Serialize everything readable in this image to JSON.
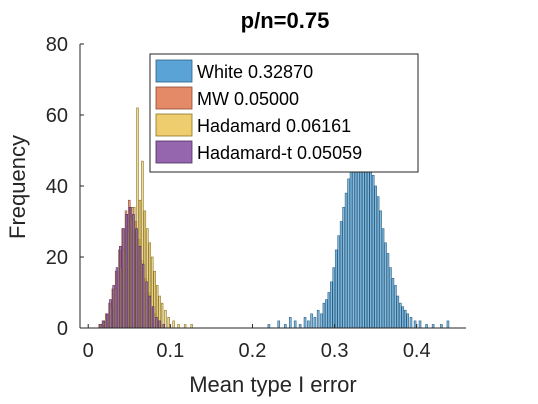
{
  "chart_data": {
    "type": "histogram",
    "title": "p/n=0.75",
    "xlabel": "Mean type I error",
    "ylabel": "Frequency",
    "xlim": [
      -0.01,
      0.46
    ],
    "ylim": [
      0,
      80
    ],
    "xticks": [
      0,
      0.1,
      0.2,
      0.3,
      0.4
    ],
    "xtick_labels": [
      "0",
      "0.1",
      "0.2",
      "0.3",
      "0.4"
    ],
    "yticks": [
      0,
      20,
      40,
      60,
      80
    ],
    "ytick_labels": [
      "0",
      "20",
      "40",
      "60",
      "80"
    ],
    "grid": false,
    "legend_position": "top-center",
    "series": [
      {
        "name": "White 0.32870",
        "color": "#5aa3d6",
        "edge_color": "#2b5f82",
        "bin_width": 0.0024,
        "bins": [
          {
            "x": 0.22,
            "y": 1
          },
          {
            "x": 0.232,
            "y": 2
          },
          {
            "x": 0.24,
            "y": 1
          },
          {
            "x": 0.246,
            "y": 3
          },
          {
            "x": 0.252,
            "y": 2
          },
          {
            "x": 0.258,
            "y": 1
          },
          {
            "x": 0.264,
            "y": 3
          },
          {
            "x": 0.268,
            "y": 2
          },
          {
            "x": 0.272,
            "y": 4
          },
          {
            "x": 0.276,
            "y": 3
          },
          {
            "x": 0.28,
            "y": 5
          },
          {
            "x": 0.284,
            "y": 4
          },
          {
            "x": 0.287,
            "y": 7
          },
          {
            "x": 0.29,
            "y": 8
          },
          {
            "x": 0.293,
            "y": 10
          },
          {
            "x": 0.296,
            "y": 13
          },
          {
            "x": 0.299,
            "y": 17
          },
          {
            "x": 0.302,
            "y": 22
          },
          {
            "x": 0.305,
            "y": 26
          },
          {
            "x": 0.308,
            "y": 30
          },
          {
            "x": 0.311,
            "y": 34
          },
          {
            "x": 0.314,
            "y": 38
          },
          {
            "x": 0.317,
            "y": 42
          },
          {
            "x": 0.32,
            "y": 45
          },
          {
            "x": 0.323,
            "y": 50
          },
          {
            "x": 0.326,
            "y": 48
          },
          {
            "x": 0.329,
            "y": 52
          },
          {
            "x": 0.332,
            "y": 49
          },
          {
            "x": 0.335,
            "y": 55
          },
          {
            "x": 0.338,
            "y": 51
          },
          {
            "x": 0.341,
            "y": 47
          },
          {
            "x": 0.344,
            "y": 45
          },
          {
            "x": 0.347,
            "y": 43
          },
          {
            "x": 0.35,
            "y": 40
          },
          {
            "x": 0.353,
            "y": 37
          },
          {
            "x": 0.356,
            "y": 33
          },
          {
            "x": 0.359,
            "y": 28
          },
          {
            "x": 0.362,
            "y": 24
          },
          {
            "x": 0.365,
            "y": 21
          },
          {
            "x": 0.368,
            "y": 17
          },
          {
            "x": 0.371,
            "y": 14
          },
          {
            "x": 0.374,
            "y": 12
          },
          {
            "x": 0.377,
            "y": 9
          },
          {
            "x": 0.38,
            "y": 7
          },
          {
            "x": 0.383,
            "y": 6
          },
          {
            "x": 0.386,
            "y": 5
          },
          {
            "x": 0.389,
            "y": 4
          },
          {
            "x": 0.393,
            "y": 3
          },
          {
            "x": 0.398,
            "y": 2
          },
          {
            "x": 0.404,
            "y": 2
          },
          {
            "x": 0.412,
            "y": 1
          },
          {
            "x": 0.42,
            "y": 1
          },
          {
            "x": 0.43,
            "y": 1
          },
          {
            "x": 0.438,
            "y": 2
          }
        ]
      },
      {
        "name": "MW 0.05000",
        "color": "#e58a66",
        "edge_color": "#8a4a30",
        "bin_width": 0.0022,
        "bins": [
          {
            "x": 0.014,
            "y": 1
          },
          {
            "x": 0.018,
            "y": 2
          },
          {
            "x": 0.022,
            "y": 4
          },
          {
            "x": 0.026,
            "y": 7
          },
          {
            "x": 0.03,
            "y": 11
          },
          {
            "x": 0.034,
            "y": 16
          },
          {
            "x": 0.038,
            "y": 22
          },
          {
            "x": 0.042,
            "y": 28
          },
          {
            "x": 0.046,
            "y": 33
          },
          {
            "x": 0.05,
            "y": 36
          },
          {
            "x": 0.054,
            "y": 34
          },
          {
            "x": 0.058,
            "y": 30
          },
          {
            "x": 0.062,
            "y": 25
          },
          {
            "x": 0.066,
            "y": 19
          },
          {
            "x": 0.07,
            "y": 14
          },
          {
            "x": 0.074,
            "y": 10
          },
          {
            "x": 0.078,
            "y": 6
          },
          {
            "x": 0.082,
            "y": 4
          },
          {
            "x": 0.086,
            "y": 2
          },
          {
            "x": 0.09,
            "y": 1
          }
        ]
      },
      {
        "name": "Hadamard 0.06161",
        "color": "#eecd6e",
        "edge_color": "#8a7424",
        "bin_width": 0.0022,
        "bins": [
          {
            "x": 0.016,
            "y": 1
          },
          {
            "x": 0.022,
            "y": 3
          },
          {
            "x": 0.028,
            "y": 6
          },
          {
            "x": 0.034,
            "y": 11
          },
          {
            "x": 0.04,
            "y": 17
          },
          {
            "x": 0.044,
            "y": 22
          },
          {
            "x": 0.048,
            "y": 27
          },
          {
            "x": 0.052,
            "y": 31
          },
          {
            "x": 0.056,
            "y": 34
          },
          {
            "x": 0.06,
            "y": 62
          },
          {
            "x": 0.063,
            "y": 36
          },
          {
            "x": 0.066,
            "y": 47
          },
          {
            "x": 0.069,
            "y": 33
          },
          {
            "x": 0.072,
            "y": 28
          },
          {
            "x": 0.075,
            "y": 24
          },
          {
            "x": 0.078,
            "y": 20
          },
          {
            "x": 0.081,
            "y": 16
          },
          {
            "x": 0.084,
            "y": 12
          },
          {
            "x": 0.087,
            "y": 9
          },
          {
            "x": 0.09,
            "y": 7
          },
          {
            "x": 0.094,
            "y": 5
          },
          {
            "x": 0.098,
            "y": 3
          },
          {
            "x": 0.104,
            "y": 2
          },
          {
            "x": 0.11,
            "y": 1
          },
          {
            "x": 0.118,
            "y": 1
          },
          {
            "x": 0.126,
            "y": 1
          }
        ]
      },
      {
        "name": "Hadamard-t 0.05059",
        "color": "#9566ae",
        "edge_color": "#4b2a5f",
        "bin_width": 0.0022,
        "bins": [
          {
            "x": 0.015,
            "y": 1
          },
          {
            "x": 0.019,
            "y": 2
          },
          {
            "x": 0.023,
            "y": 4
          },
          {
            "x": 0.027,
            "y": 8
          },
          {
            "x": 0.031,
            "y": 12
          },
          {
            "x": 0.035,
            "y": 17
          },
          {
            "x": 0.039,
            "y": 23
          },
          {
            "x": 0.043,
            "y": 28
          },
          {
            "x": 0.047,
            "y": 32
          },
          {
            "x": 0.051,
            "y": 34
          },
          {
            "x": 0.055,
            "y": 32
          },
          {
            "x": 0.059,
            "y": 28
          },
          {
            "x": 0.063,
            "y": 23
          },
          {
            "x": 0.067,
            "y": 18
          },
          {
            "x": 0.071,
            "y": 13
          },
          {
            "x": 0.075,
            "y": 9
          },
          {
            "x": 0.079,
            "y": 6
          },
          {
            "x": 0.083,
            "y": 3
          },
          {
            "x": 0.087,
            "y": 2
          },
          {
            "x": 0.092,
            "y": 1
          }
        ]
      }
    ]
  }
}
